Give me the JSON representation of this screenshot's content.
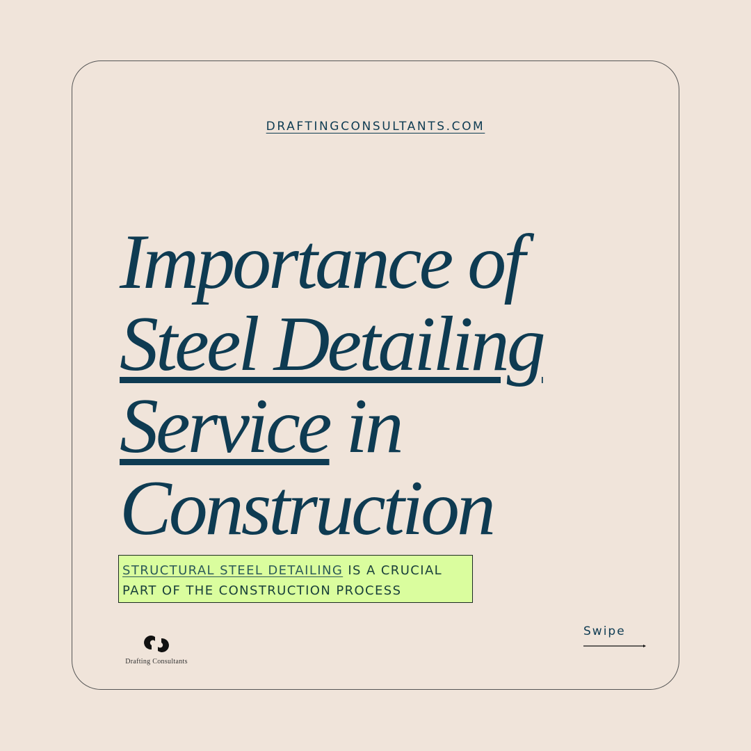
{
  "website": "DRAFTINGCONSULTANTS.COM",
  "title": {
    "line1": "Importance of",
    "line2_underlined": "Steel Detailing",
    "line3_underlined": "Service",
    "line3_rest": " in",
    "line4": "Construction"
  },
  "callout": {
    "highlight": "STRUCTURAL STEEL DETAILING",
    "rest": " IS A CRUCIAL PART OF THE CONSTRUCTION PROCESS",
    "background": "#dafd9e"
  },
  "logo": {
    "text": "Drafting Consultants",
    "icon": "drafting-consultants-logo-icon"
  },
  "swipe": {
    "label": "Swipe",
    "icon": "arrow-right-icon"
  },
  "colors": {
    "text": "#0e3b52",
    "background": "#f0e4da"
  }
}
